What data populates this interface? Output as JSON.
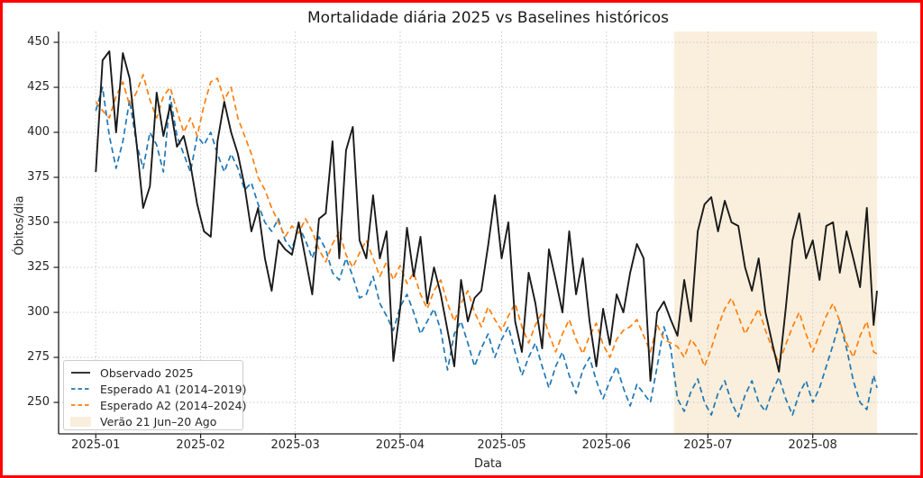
{
  "figure": {
    "border_color": "#ff0000",
    "background": "#ffffff"
  },
  "chart_data": {
    "type": "line",
    "title": "Mortalidade diária 2025 vs Baselines históricos",
    "xlabel": "Data",
    "ylabel": "Óbitos/dia",
    "grid": true,
    "legend_position": "lower left",
    "ylim": [
      232.5,
      456
    ],
    "xlim_days": [
      -11,
      243
    ],
    "y_ticks": [
      250,
      275,
      300,
      325,
      350,
      375,
      400,
      425,
      450
    ],
    "x_ticks": [
      {
        "day": 0,
        "label": "2025-01"
      },
      {
        "day": 31,
        "label": "2025-02"
      },
      {
        "day": 59,
        "label": "2025-03"
      },
      {
        "day": 90,
        "label": "2025-04"
      },
      {
        "day": 120,
        "label": "2025-05"
      },
      {
        "day": 151,
        "label": "2025-06"
      },
      {
        "day": 181,
        "label": "2025-07"
      },
      {
        "day": 212,
        "label": "2025-08"
      }
    ],
    "x_unit": "days since 2025-01-01",
    "days": [
      0,
      2,
      4,
      6,
      8,
      10,
      12,
      14,
      16,
      18,
      20,
      22,
      24,
      26,
      28,
      30,
      32,
      34,
      36,
      38,
      40,
      42,
      44,
      46,
      48,
      50,
      52,
      54,
      56,
      58,
      60,
      62,
      64,
      66,
      68,
      70,
      72,
      74,
      76,
      78,
      80,
      82,
      84,
      86,
      88,
      90,
      92,
      94,
      96,
      98,
      100,
      102,
      104,
      106,
      108,
      110,
      112,
      114,
      116,
      118,
      120,
      122,
      124,
      126,
      128,
      130,
      132,
      134,
      136,
      138,
      140,
      142,
      144,
      146,
      148,
      150,
      152,
      154,
      156,
      158,
      160,
      162,
      164,
      166,
      168,
      170,
      172,
      174,
      176,
      178,
      180,
      182,
      184,
      186,
      188,
      190,
      192,
      194,
      196,
      198,
      200,
      202,
      204,
      206,
      208,
      210,
      212,
      214,
      216,
      218,
      220,
      222,
      224,
      226,
      228,
      230,
      231
    ],
    "series": [
      {
        "name": "Observado 2025",
        "color": "#1a1a1a",
        "style": "solid",
        "values": [
          378,
          440,
          445,
          400,
          444,
          430,
          395,
          358,
          370,
          422,
          398,
          415,
          392,
          398,
          382,
          360,
          345,
          342,
          395,
          417,
          400,
          388,
          370,
          345,
          358,
          330,
          312,
          340,
          335,
          332,
          350,
          330,
          310,
          352,
          355,
          395,
          330,
          390,
          403,
          340,
          330,
          365,
          330,
          345,
          273,
          302,
          347,
          320,
          342,
          305,
          325,
          310,
          290,
          270,
          318,
          295,
          308,
          312,
          337,
          365,
          330,
          350,
          295,
          278,
          322,
          305,
          280,
          335,
          318,
          300,
          345,
          310,
          330,
          295,
          270,
          302,
          282,
          310,
          300,
          322,
          338,
          330,
          262,
          300,
          306,
          296,
          287,
          318,
          295,
          345,
          360,
          364,
          345,
          362,
          350,
          348,
          325,
          312,
          330,
          300,
          283,
          267,
          302,
          340,
          355,
          330,
          340,
          318,
          348,
          350,
          322,
          345,
          330,
          314,
          358,
          293,
          312
        ]
      },
      {
        "name": "Esperado A1 (2014–2019)",
        "color": "#1f77b4",
        "style": "dashed",
        "values": [
          412,
          425,
          398,
          380,
          395,
          418,
          394,
          380,
          400,
          393,
          378,
          420,
          398,
          388,
          378,
          398,
          393,
          400,
          388,
          378,
          388,
          380,
          368,
          372,
          360,
          350,
          345,
          352,
          340,
          335,
          348,
          340,
          330,
          342,
          335,
          322,
          318,
          330,
          320,
          308,
          310,
          320,
          305,
          298,
          290,
          303,
          310,
          300,
          288,
          295,
          302,
          290,
          268,
          288,
          295,
          283,
          270,
          280,
          288,
          275,
          285,
          292,
          278,
          265,
          275,
          283,
          270,
          258,
          270,
          278,
          265,
          255,
          268,
          275,
          262,
          252,
          262,
          270,
          258,
          248,
          260,
          255,
          250,
          270,
          292,
          280,
          252,
          245,
          256,
          263,
          250,
          243,
          255,
          262,
          250,
          242,
          254,
          262,
          250,
          245,
          256,
          264,
          252,
          243,
          255,
          262,
          250,
          258,
          270,
          282,
          295,
          280,
          262,
          250,
          246,
          265,
          258
        ]
      },
      {
        "name": "Esperado A2 (2014–2024)",
        "color": "#ff7f0e",
        "style": "dashed",
        "values": [
          417,
          412,
          408,
          420,
          428,
          415,
          422,
          432,
          418,
          408,
          420,
          425,
          412,
          400,
          408,
          398,
          415,
          428,
          430,
          418,
          425,
          408,
          398,
          388,
          375,
          368,
          358,
          350,
          342,
          348,
          344,
          352,
          345,
          335,
          328,
          338,
          345,
          332,
          325,
          333,
          340,
          330,
          320,
          328,
          318,
          326,
          316,
          322,
          310,
          302,
          312,
          318,
          305,
          295,
          305,
          312,
          300,
          292,
          303,
          296,
          290,
          298,
          305,
          292,
          283,
          293,
          300,
          288,
          278,
          288,
          296,
          285,
          277,
          287,
          294,
          282,
          275,
          285,
          290,
          292,
          296,
          287,
          278,
          293,
          285,
          283,
          281,
          275,
          285,
          280,
          270,
          280,
          292,
          302,
          308,
          298,
          288,
          295,
          302,
          290,
          280,
          272,
          282,
          292,
          300,
          288,
          278,
          288,
          298,
          305,
          295,
          283,
          275,
          287,
          295,
          278,
          277
        ]
      }
    ],
    "shaded_region": {
      "label": "Verão 21 Jun–20 Ago",
      "start_day": 171,
      "end_day": 231,
      "color": "#FAEFDC"
    },
    "grid_color": "#c9c9c9",
    "spine_color": "#1a1a1a"
  }
}
